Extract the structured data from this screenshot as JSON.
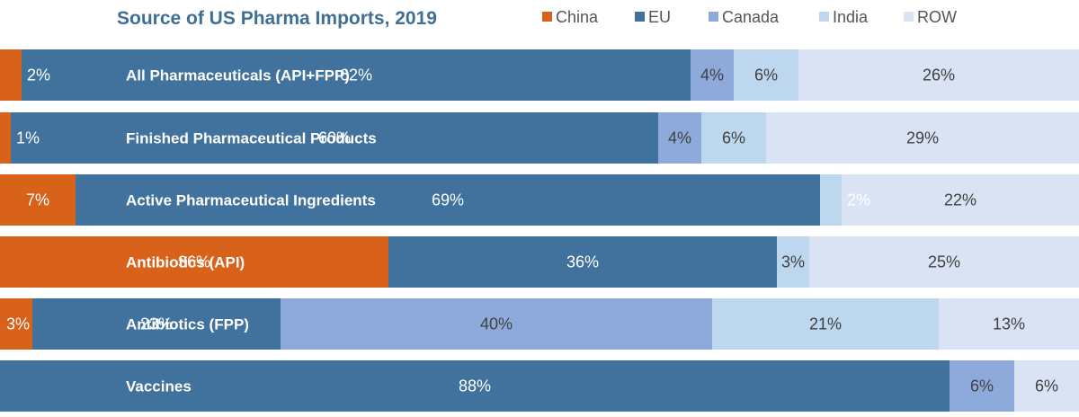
{
  "chart_data": {
    "type": "bar",
    "orientation": "horizontal",
    "stacked": true,
    "title": "Source of US Pharma Imports, 2019",
    "legend_position": "top",
    "categories": [
      "All Pharmaceuticals (API+FPP)",
      "Finished Pharmaceutical Products",
      "Active Pharmaceutical Ingredients",
      "Antibiotics (API)",
      "Antibiotics (FPP)",
      "Vaccines"
    ],
    "series": [
      {
        "name": "China",
        "color": "#d9621a",
        "text_color": "#ffffff",
        "values": [
          2,
          1,
          7,
          36,
          3,
          0
        ],
        "labels": [
          "2%",
          "1%",
          "7%",
          "36%",
          "3%",
          ""
        ]
      },
      {
        "name": "EU",
        "color": "#41729e",
        "text_color": "#ffffff",
        "values": [
          62,
          60,
          69,
          36,
          23,
          88
        ],
        "labels": [
          "62%",
          "60%",
          "69%",
          "36%",
          "23%",
          "88%"
        ]
      },
      {
        "name": "Canada",
        "color": "#8eaadb",
        "text_color": "#404040",
        "values": [
          4,
          4,
          0,
          0,
          40,
          6
        ],
        "labels": [
          "4%",
          "4%",
          "",
          "",
          "40%",
          "6%"
        ]
      },
      {
        "name": "India",
        "color": "#bdd7ee",
        "text_color": "#404040",
        "values": [
          6,
          6,
          2,
          3,
          21,
          0
        ],
        "labels": [
          "6%",
          "6%",
          "2%",
          "3%",
          "21%",
          ""
        ]
      },
      {
        "name": "ROW",
        "color": "#dae3f3",
        "text_color": "#404040",
        "values": [
          26,
          29,
          22,
          25,
          13,
          6
        ],
        "labels": [
          "26%",
          "29%",
          "22%",
          "25%",
          "13%",
          "6%"
        ]
      }
    ],
    "xlim": [
      0,
      100
    ],
    "grid": false
  }
}
